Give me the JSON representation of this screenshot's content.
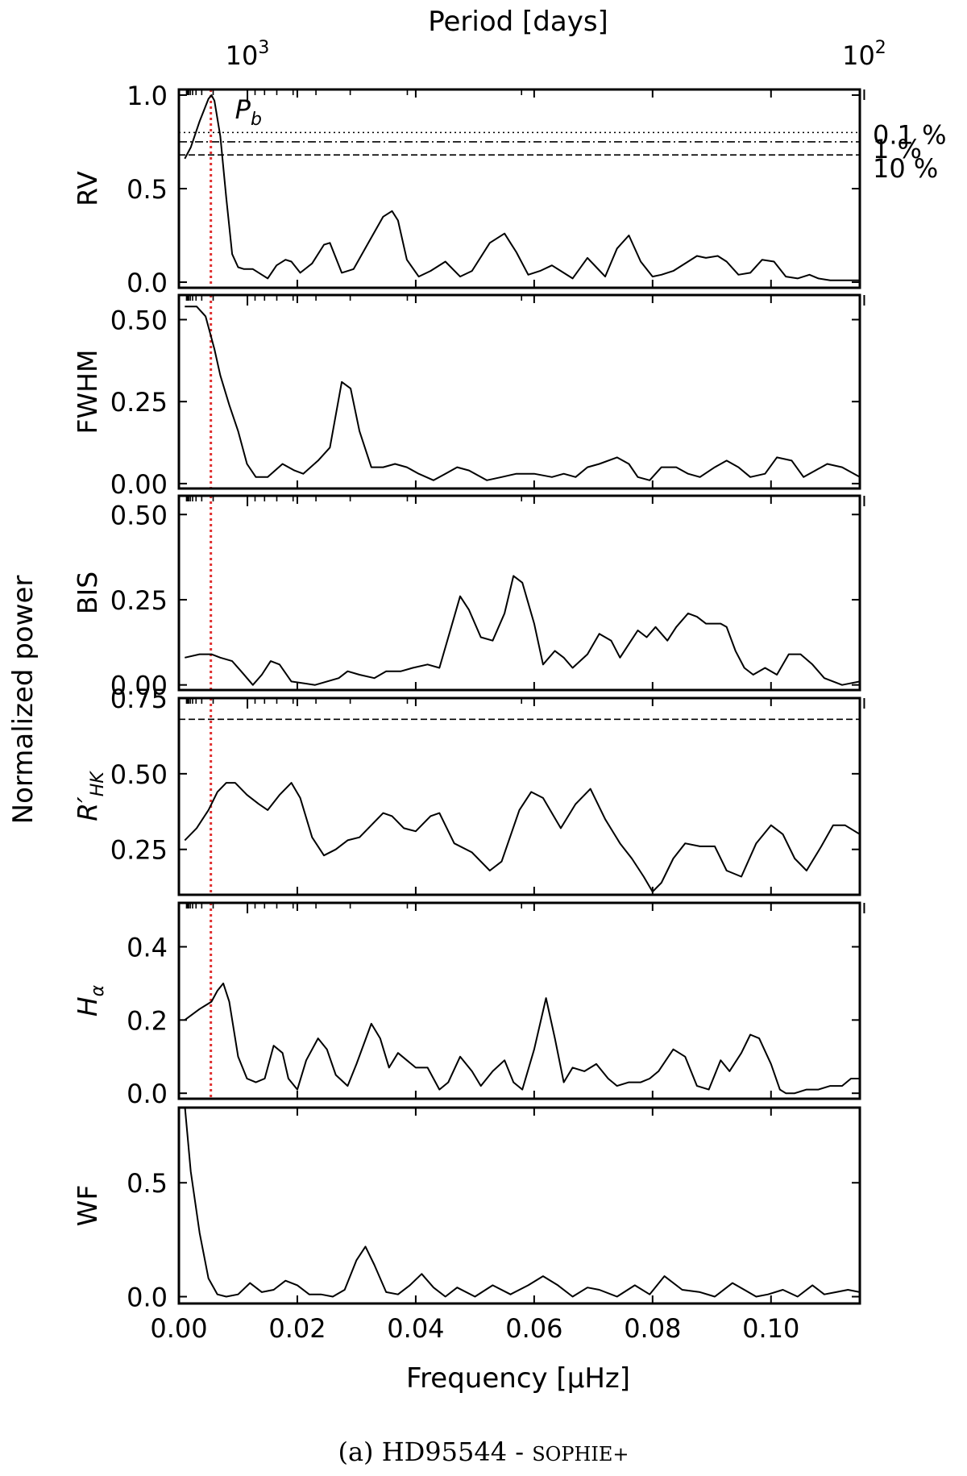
{
  "caption": {
    "prefix": "(a) HD95544 - ",
    "instrument": "SOPHIE+"
  },
  "chart_data": {
    "type": "line",
    "top_axis": {
      "label": "Period [days]",
      "ticks": [
        {
          "period": 1000,
          "base": "10",
          "exp": "3"
        },
        {
          "period": 100,
          "base": "10",
          "exp": "2"
        }
      ]
    },
    "xlabel": "Frequency [μHz]",
    "xlim": [
      0.0,
      0.115
    ],
    "xticks": [
      "0.00",
      "0.02",
      "0.04",
      "0.06",
      "0.08",
      "0.10"
    ],
    "ylabel_common": "Normalized power",
    "vline": {
      "x": 0.0054,
      "label": "P",
      "label_sub": "b",
      "color": "#e03030"
    },
    "panels": [
      {
        "name": "RV",
        "ylim": [
          -0.03,
          1.03
        ],
        "yticks": [
          "0.0",
          "0.5",
          "1.0"
        ],
        "vline": true,
        "fap_lines": [
          {
            "label": "0.1 %",
            "y": 0.8,
            "style": "dotted"
          },
          {
            "label": "1 %",
            "y": 0.75,
            "style": "dashdot"
          },
          {
            "label": "10 %",
            "y": 0.68,
            "style": "dashed"
          }
        ],
        "x": [
          0.001,
          0.002,
          0.0035,
          0.005,
          0.0055,
          0.006,
          0.007,
          0.008,
          0.009,
          0.01,
          0.011,
          0.0125,
          0.014,
          0.015,
          0.0165,
          0.018,
          0.019,
          0.0205,
          0.0225,
          0.0245,
          0.0255,
          0.0275,
          0.0295,
          0.032,
          0.0345,
          0.036,
          0.037,
          0.0385,
          0.0405,
          0.0425,
          0.045,
          0.0475,
          0.0495,
          0.0525,
          0.055,
          0.057,
          0.059,
          0.061,
          0.063,
          0.0645,
          0.0665,
          0.069,
          0.0705,
          0.072,
          0.074,
          0.076,
          0.078,
          0.08,
          0.0815,
          0.0835,
          0.086,
          0.0875,
          0.089,
          0.091,
          0.0925,
          0.0945,
          0.0965,
          0.0985,
          0.1005,
          0.1025,
          0.1045,
          0.1065,
          0.108,
          0.11,
          0.112,
          0.115
        ],
        "y": [
          0.66,
          0.72,
          0.86,
          0.98,
          1.0,
          0.97,
          0.78,
          0.45,
          0.15,
          0.08,
          0.07,
          0.07,
          0.04,
          0.02,
          0.09,
          0.12,
          0.11,
          0.05,
          0.1,
          0.2,
          0.21,
          0.05,
          0.07,
          0.21,
          0.35,
          0.38,
          0.33,
          0.12,
          0.03,
          0.06,
          0.11,
          0.03,
          0.06,
          0.21,
          0.26,
          0.16,
          0.04,
          0.06,
          0.09,
          0.06,
          0.02,
          0.13,
          0.08,
          0.03,
          0.18,
          0.25,
          0.11,
          0.03,
          0.04,
          0.06,
          0.11,
          0.14,
          0.13,
          0.14,
          0.11,
          0.04,
          0.05,
          0.12,
          0.11,
          0.03,
          0.02,
          0.04,
          0.02,
          0.01,
          0.01,
          0.01
        ]
      },
      {
        "name": "FWHM",
        "ylim": [
          -0.015,
          0.575
        ],
        "yticks": [
          "0.00",
          "0.25",
          "0.50"
        ],
        "vline": true,
        "fap_lines": [],
        "x": [
          0.001,
          0.003,
          0.0045,
          0.006,
          0.007,
          0.0085,
          0.01,
          0.0115,
          0.013,
          0.015,
          0.0175,
          0.0195,
          0.021,
          0.0235,
          0.0255,
          0.0275,
          0.029,
          0.0305,
          0.0325,
          0.0345,
          0.0365,
          0.0385,
          0.0405,
          0.043,
          0.045,
          0.047,
          0.049,
          0.052,
          0.0545,
          0.057,
          0.06,
          0.063,
          0.065,
          0.067,
          0.069,
          0.071,
          0.074,
          0.076,
          0.0775,
          0.0795,
          0.0815,
          0.084,
          0.086,
          0.088,
          0.0905,
          0.0925,
          0.0945,
          0.0965,
          0.099,
          0.101,
          0.1035,
          0.1055,
          0.1075,
          0.1095,
          0.112,
          0.115
        ],
        "y": [
          0.54,
          0.54,
          0.51,
          0.41,
          0.33,
          0.24,
          0.16,
          0.06,
          0.02,
          0.02,
          0.06,
          0.04,
          0.03,
          0.07,
          0.11,
          0.31,
          0.29,
          0.16,
          0.05,
          0.05,
          0.06,
          0.05,
          0.03,
          0.01,
          0.03,
          0.05,
          0.04,
          0.01,
          0.02,
          0.03,
          0.03,
          0.02,
          0.03,
          0.02,
          0.05,
          0.06,
          0.08,
          0.06,
          0.02,
          0.01,
          0.05,
          0.05,
          0.03,
          0.02,
          0.05,
          0.07,
          0.05,
          0.02,
          0.03,
          0.08,
          0.07,
          0.02,
          0.04,
          0.06,
          0.05,
          0.02
        ]
      },
      {
        "name": "BIS",
        "ylim": [
          -0.015,
          0.555
        ],
        "yticks": [
          "0.00",
          "0.25",
          "0.50"
        ],
        "vline": true,
        "fap_lines": [],
        "x": [
          0.001,
          0.0035,
          0.0055,
          0.007,
          0.009,
          0.0105,
          0.0125,
          0.014,
          0.0155,
          0.017,
          0.019,
          0.023,
          0.027,
          0.0285,
          0.0305,
          0.033,
          0.035,
          0.0375,
          0.0395,
          0.042,
          0.044,
          0.046,
          0.0475,
          0.049,
          0.051,
          0.053,
          0.055,
          0.0565,
          0.058,
          0.06,
          0.0615,
          0.0635,
          0.065,
          0.0665,
          0.069,
          0.071,
          0.073,
          0.0745,
          0.076,
          0.0775,
          0.079,
          0.0805,
          0.0825,
          0.084,
          0.086,
          0.0875,
          0.089,
          0.0905,
          0.0915,
          0.0925,
          0.094,
          0.0955,
          0.097,
          0.099,
          0.101,
          0.103,
          0.105,
          0.107,
          0.109,
          0.112,
          0.115
        ],
        "y": [
          0.08,
          0.09,
          0.09,
          0.08,
          0.07,
          0.04,
          0.0,
          0.03,
          0.07,
          0.06,
          0.01,
          0.0,
          0.02,
          0.04,
          0.03,
          0.02,
          0.04,
          0.04,
          0.05,
          0.06,
          0.05,
          0.17,
          0.26,
          0.22,
          0.14,
          0.13,
          0.21,
          0.32,
          0.3,
          0.18,
          0.06,
          0.1,
          0.08,
          0.05,
          0.09,
          0.15,
          0.13,
          0.08,
          0.12,
          0.16,
          0.14,
          0.17,
          0.13,
          0.17,
          0.21,
          0.2,
          0.18,
          0.18,
          0.18,
          0.17,
          0.1,
          0.05,
          0.03,
          0.05,
          0.03,
          0.09,
          0.09,
          0.06,
          0.02,
          0.0,
          0.01
        ]
      },
      {
        "name": "R'HK",
        "name_main": "R′",
        "name_sub": "HK",
        "ylim": [
          0.1,
          0.75
        ],
        "yticks": [
          "0.25",
          "0.50",
          "0.75"
        ],
        "vline": true,
        "fap_lines": [
          {
            "label": "",
            "y": 0.68,
            "style": "dashed"
          }
        ],
        "x": [
          0.001,
          0.003,
          0.005,
          0.0065,
          0.008,
          0.0095,
          0.0115,
          0.0135,
          0.015,
          0.017,
          0.019,
          0.0205,
          0.0225,
          0.0245,
          0.0265,
          0.0285,
          0.0305,
          0.032,
          0.0345,
          0.036,
          0.038,
          0.04,
          0.0425,
          0.044,
          0.0465,
          0.0495,
          0.0525,
          0.0545,
          0.0575,
          0.0595,
          0.0615,
          0.0645,
          0.067,
          0.0695,
          0.072,
          0.0745,
          0.0765,
          0.0785,
          0.08,
          0.0815,
          0.0835,
          0.0855,
          0.088,
          0.0905,
          0.0925,
          0.095,
          0.0975,
          0.1,
          0.102,
          0.104,
          0.106,
          0.1085,
          0.1105,
          0.1125,
          0.115
        ],
        "y": [
          0.28,
          0.32,
          0.38,
          0.44,
          0.47,
          0.47,
          0.43,
          0.4,
          0.38,
          0.43,
          0.47,
          0.42,
          0.29,
          0.23,
          0.25,
          0.28,
          0.29,
          0.32,
          0.37,
          0.36,
          0.32,
          0.31,
          0.36,
          0.37,
          0.27,
          0.24,
          0.18,
          0.21,
          0.38,
          0.44,
          0.42,
          0.32,
          0.4,
          0.45,
          0.35,
          0.27,
          0.22,
          0.16,
          0.11,
          0.14,
          0.22,
          0.27,
          0.26,
          0.26,
          0.18,
          0.16,
          0.27,
          0.33,
          0.3,
          0.22,
          0.18,
          0.26,
          0.33,
          0.33,
          0.3
        ]
      },
      {
        "name": "Hα",
        "name_main": "H",
        "name_sub": "α",
        "ylim": [
          -0.015,
          0.52
        ],
        "yticks": [
          "0.0",
          "0.2",
          "0.4"
        ],
        "vline": true,
        "fap_lines": [],
        "x": [
          0.001,
          0.0035,
          0.0055,
          0.0065,
          0.0075,
          0.0085,
          0.01,
          0.0115,
          0.013,
          0.0145,
          0.016,
          0.0175,
          0.0185,
          0.02,
          0.0215,
          0.0235,
          0.025,
          0.0265,
          0.0285,
          0.03,
          0.0325,
          0.034,
          0.0355,
          0.037,
          0.0385,
          0.04,
          0.042,
          0.044,
          0.0455,
          0.0475,
          0.0495,
          0.051,
          0.053,
          0.055,
          0.0565,
          0.058,
          0.06,
          0.062,
          0.0635,
          0.065,
          0.0665,
          0.0685,
          0.0705,
          0.0725,
          0.074,
          0.076,
          0.078,
          0.0795,
          0.081,
          0.0835,
          0.0855,
          0.0875,
          0.0895,
          0.0915,
          0.093,
          0.095,
          0.0965,
          0.098,
          0.1,
          0.1015,
          0.1025,
          0.104,
          0.106,
          0.108,
          0.11,
          0.112,
          0.1135,
          0.115
        ],
        "y": [
          0.2,
          0.23,
          0.25,
          0.28,
          0.3,
          0.25,
          0.1,
          0.04,
          0.03,
          0.04,
          0.13,
          0.11,
          0.04,
          0.01,
          0.09,
          0.15,
          0.12,
          0.05,
          0.02,
          0.08,
          0.19,
          0.15,
          0.07,
          0.11,
          0.09,
          0.07,
          0.07,
          0.01,
          0.03,
          0.1,
          0.06,
          0.02,
          0.06,
          0.09,
          0.03,
          0.01,
          0.12,
          0.26,
          0.15,
          0.03,
          0.07,
          0.06,
          0.08,
          0.04,
          0.02,
          0.03,
          0.03,
          0.04,
          0.06,
          0.12,
          0.1,
          0.02,
          0.01,
          0.09,
          0.06,
          0.11,
          0.16,
          0.15,
          0.08,
          0.01,
          0.0,
          0.0,
          0.01,
          0.01,
          0.02,
          0.02,
          0.04,
          0.04
        ]
      },
      {
        "name": "WF",
        "ylim": [
          -0.03,
          0.83
        ],
        "yticks": [
          "0.0",
          "0.5"
        ],
        "vline": false,
        "fap_lines": [],
        "x": [
          0.001,
          0.002,
          0.0035,
          0.005,
          0.0065,
          0.008,
          0.01,
          0.012,
          0.014,
          0.016,
          0.018,
          0.02,
          0.022,
          0.024,
          0.026,
          0.028,
          0.03,
          0.0315,
          0.033,
          0.035,
          0.037,
          0.039,
          0.041,
          0.043,
          0.045,
          0.047,
          0.05,
          0.053,
          0.056,
          0.059,
          0.0615,
          0.064,
          0.0665,
          0.069,
          0.071,
          0.074,
          0.077,
          0.0795,
          0.082,
          0.085,
          0.088,
          0.0905,
          0.0935,
          0.0955,
          0.0975,
          0.0995,
          0.102,
          0.1045,
          0.107,
          0.109,
          0.111,
          0.113,
          0.115
        ],
        "y": [
          0.84,
          0.55,
          0.28,
          0.08,
          0.01,
          0.0,
          0.01,
          0.06,
          0.02,
          0.03,
          0.07,
          0.05,
          0.01,
          0.01,
          0.0,
          0.03,
          0.16,
          0.22,
          0.14,
          0.02,
          0.01,
          0.05,
          0.1,
          0.04,
          0.0,
          0.04,
          0.0,
          0.05,
          0.01,
          0.05,
          0.09,
          0.05,
          0.0,
          0.04,
          0.03,
          0.0,
          0.05,
          0.01,
          0.09,
          0.03,
          0.02,
          0.0,
          0.06,
          0.03,
          0.0,
          0.01,
          0.03,
          0.0,
          0.05,
          0.01,
          0.02,
          0.03,
          0.02
        ]
      }
    ]
  }
}
